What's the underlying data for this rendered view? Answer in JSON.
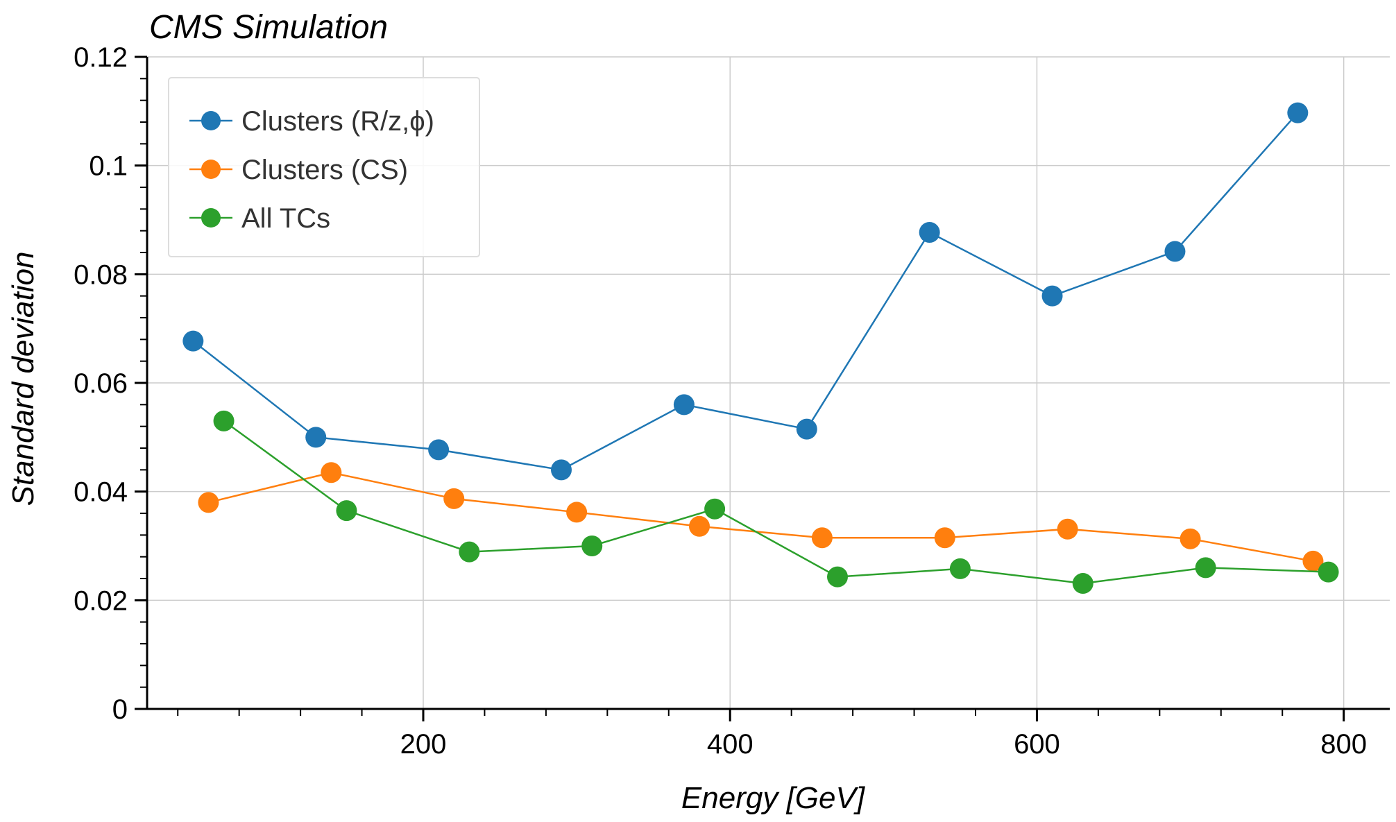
{
  "chart_data": {
    "type": "line",
    "title": "CMS Simulation",
    "xlabel": "Energy [GeV]",
    "ylabel": "Standard deviation",
    "xlim": [
      20,
      830
    ],
    "ylim": [
      0,
      0.12
    ],
    "xticks": [
      200,
      400,
      600,
      800
    ],
    "xtick_labels": [
      "200",
      "400",
      "600",
      "800"
    ],
    "yticks": [
      0,
      0.02,
      0.04,
      0.06,
      0.08,
      0.1,
      0.12
    ],
    "ytick_labels": [
      "0",
      "0.02",
      "0.04",
      "0.06",
      "0.08",
      "0.1",
      "0.12"
    ],
    "grid": true,
    "legend_position": "top-left",
    "series": [
      {
        "name": "Clusters (R/z,ϕ)",
        "color": "#1f77b4",
        "x": [
          50,
          130,
          210,
          290,
          370,
          450,
          530,
          610,
          690,
          770
        ],
        "y": [
          0.0677,
          0.05,
          0.0477,
          0.044,
          0.056,
          0.0515,
          0.0877,
          0.076,
          0.0842,
          0.1097
        ]
      },
      {
        "name": "Clusters (CS)",
        "color": "#ff7f0e",
        "x": [
          60,
          140,
          220,
          300,
          380,
          460,
          540,
          620,
          700,
          780
        ],
        "y": [
          0.038,
          0.0435,
          0.0387,
          0.0362,
          0.0336,
          0.0315,
          0.0315,
          0.0331,
          0.0313,
          0.0272
        ]
      },
      {
        "name": "All TCs",
        "color": "#2ca02c",
        "x": [
          70,
          150,
          230,
          310,
          390,
          470,
          550,
          630,
          710,
          790
        ],
        "y": [
          0.053,
          0.0365,
          0.0289,
          0.03,
          0.0368,
          0.0243,
          0.0258,
          0.0231,
          0.026,
          0.0252
        ]
      }
    ]
  }
}
